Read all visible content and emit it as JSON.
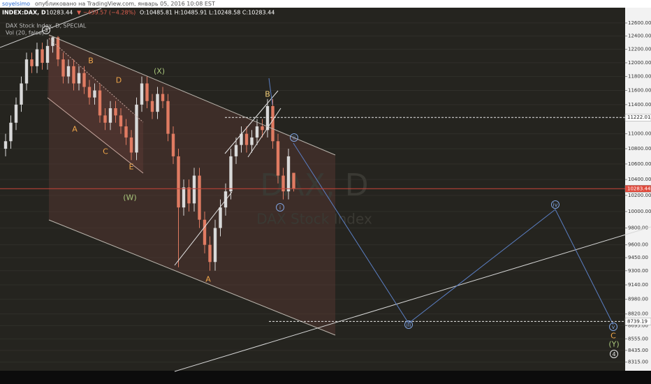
{
  "header": {
    "author": "soyelsimo",
    "published": "опубликовано на TradingView.com, январь 05, 2016 10:08 EST"
  },
  "chart_data": {
    "type": "candlestick",
    "symbol": "INDEX:DAX, D",
    "last": "10283.44",
    "change": "▼ −459.57 (−4.28%)",
    "ohlc": "O:10485.81 H:10485.91 L:10248.58 C:10283.44",
    "legend": [
      "DAX Stock Index, D, SPECIAL",
      "Vol (20, false)"
    ],
    "watermark": [
      "DAX, D",
      "DAX Stock Index"
    ],
    "open": [
      10800,
      10900,
      11150,
      11400,
      11700,
      12050,
      11950,
      12200,
      12000,
      12250,
      12380,
      12050,
      11800,
      11950,
      11700,
      11850,
      11650,
      11500,
      11600,
      11250,
      11150,
      11350,
      11250,
      11100,
      10950,
      10750,
      11400,
      11700,
      11450,
      11300,
      11550,
      11450,
      11000,
      10700,
      10050,
      10300,
      10100,
      10450,
      9900,
      9600,
      9400,
      9800,
      10050,
      10250,
      10700,
      10850,
      11000,
      10850,
      10950,
      11100,
      11050,
      11380,
      10900,
      10450,
      10250,
      10485.81
    ],
    "high": [
      11000,
      11250,
      11500,
      11800,
      12150,
      12150,
      12300,
      12300,
      12350,
      12390,
      12400,
      12150,
      12050,
      12050,
      11950,
      11950,
      11750,
      11700,
      11700,
      11350,
      11450,
      11450,
      11350,
      11200,
      11050,
      11500,
      11800,
      11800,
      11550,
      11650,
      11650,
      11550,
      11100,
      10800,
      10400,
      10400,
      10550,
      10550,
      10000,
      9700,
      9900,
      10150,
      10350,
      10800,
      10950,
      11100,
      11100,
      11050,
      11200,
      11200,
      11480,
      11480,
      11000,
      10550,
      10800,
      10485.91
    ],
    "low": [
      10700,
      10800,
      11050,
      11300,
      11600,
      11850,
      11850,
      11900,
      11900,
      12150,
      11950,
      11700,
      11700,
      11600,
      11600,
      11550,
      11400,
      11400,
      11150,
      11050,
      11050,
      11150,
      11000,
      10850,
      10650,
      10650,
      11300,
      11350,
      11200,
      11200,
      11350,
      10900,
      10600,
      9340,
      9950,
      10000,
      10000,
      9800,
      9500,
      9300,
      9300,
      9700,
      9950,
      10150,
      10600,
      10750,
      10750,
      10750,
      10850,
      10950,
      10950,
      10800,
      10350,
      10150,
      10150,
      10248.58
    ],
    "close": [
      10900,
      11150,
      11400,
      11700,
      12050,
      11950,
      12200,
      12000,
      12250,
      12380,
      12050,
      11800,
      11950,
      11700,
      11850,
      11650,
      11500,
      11600,
      11250,
      11150,
      11350,
      11250,
      11100,
      10950,
      10750,
      11400,
      11700,
      11450,
      11300,
      11550,
      11450,
      11000,
      10700,
      10050,
      10300,
      10100,
      10450,
      9900,
      9600,
      9400,
      9800,
      10050,
      10250,
      10700,
      10850,
      11000,
      10850,
      10950,
      11100,
      11050,
      11380,
      10900,
      10450,
      10250,
      10700,
      10283.44
    ],
    "up_color": "#d9d9d9",
    "down_color": "#e07b62",
    "log_scale": true,
    "grid": true,
    "ylim": [
      8220,
      12960
    ],
    "yticks": [
      {
        "value": 12600,
        "label": "12600.00"
      },
      {
        "value": 12400,
        "label": "12400.00"
      },
      {
        "value": 12200,
        "label": "12200.00"
      },
      {
        "value": 12000,
        "label": "12000.00"
      },
      {
        "value": 11800,
        "label": "11800.00"
      },
      {
        "value": 11600,
        "label": "11600.00"
      },
      {
        "value": 11400,
        "label": "11400.00"
      },
      {
        "value": 11000,
        "label": "11000.00"
      },
      {
        "value": 10800,
        "label": "10800.00"
      },
      {
        "value": 10600,
        "label": "10600.00"
      },
      {
        "value": 10400,
        "label": "10400.00"
      },
      {
        "value": 10200,
        "label": "10200.00"
      },
      {
        "value": 10000,
        "label": "10000.00"
      },
      {
        "value": 9800,
        "label": "9800.00"
      },
      {
        "value": 9600,
        "label": "9600.00"
      },
      {
        "value": 9450,
        "label": "9450.00"
      },
      {
        "value": 9300,
        "label": "9300.00"
      },
      {
        "value": 9140,
        "label": "9140.00"
      },
      {
        "value": 8980,
        "label": "8980.00"
      },
      {
        "value": 8820,
        "label": "8820.00"
      },
      {
        "value": 8695,
        "label": "8695.00"
      },
      {
        "value": 8555,
        "label": "8555.00"
      },
      {
        "value": 8435,
        "label": "8435.00"
      },
      {
        "value": 8315,
        "label": "8315.00"
      }
    ],
    "price_markers": [
      11222.01,
      10283.44,
      8739.19
    ],
    "annotations": [
      "3",
      "B",
      "D",
      "A",
      "C",
      "E",
      "(X)",
      "(W)",
      "A",
      "B",
      "ii",
      "i",
      "iii",
      "iv",
      "v",
      "C",
      "(Y)",
      "4"
    ]
  }
}
